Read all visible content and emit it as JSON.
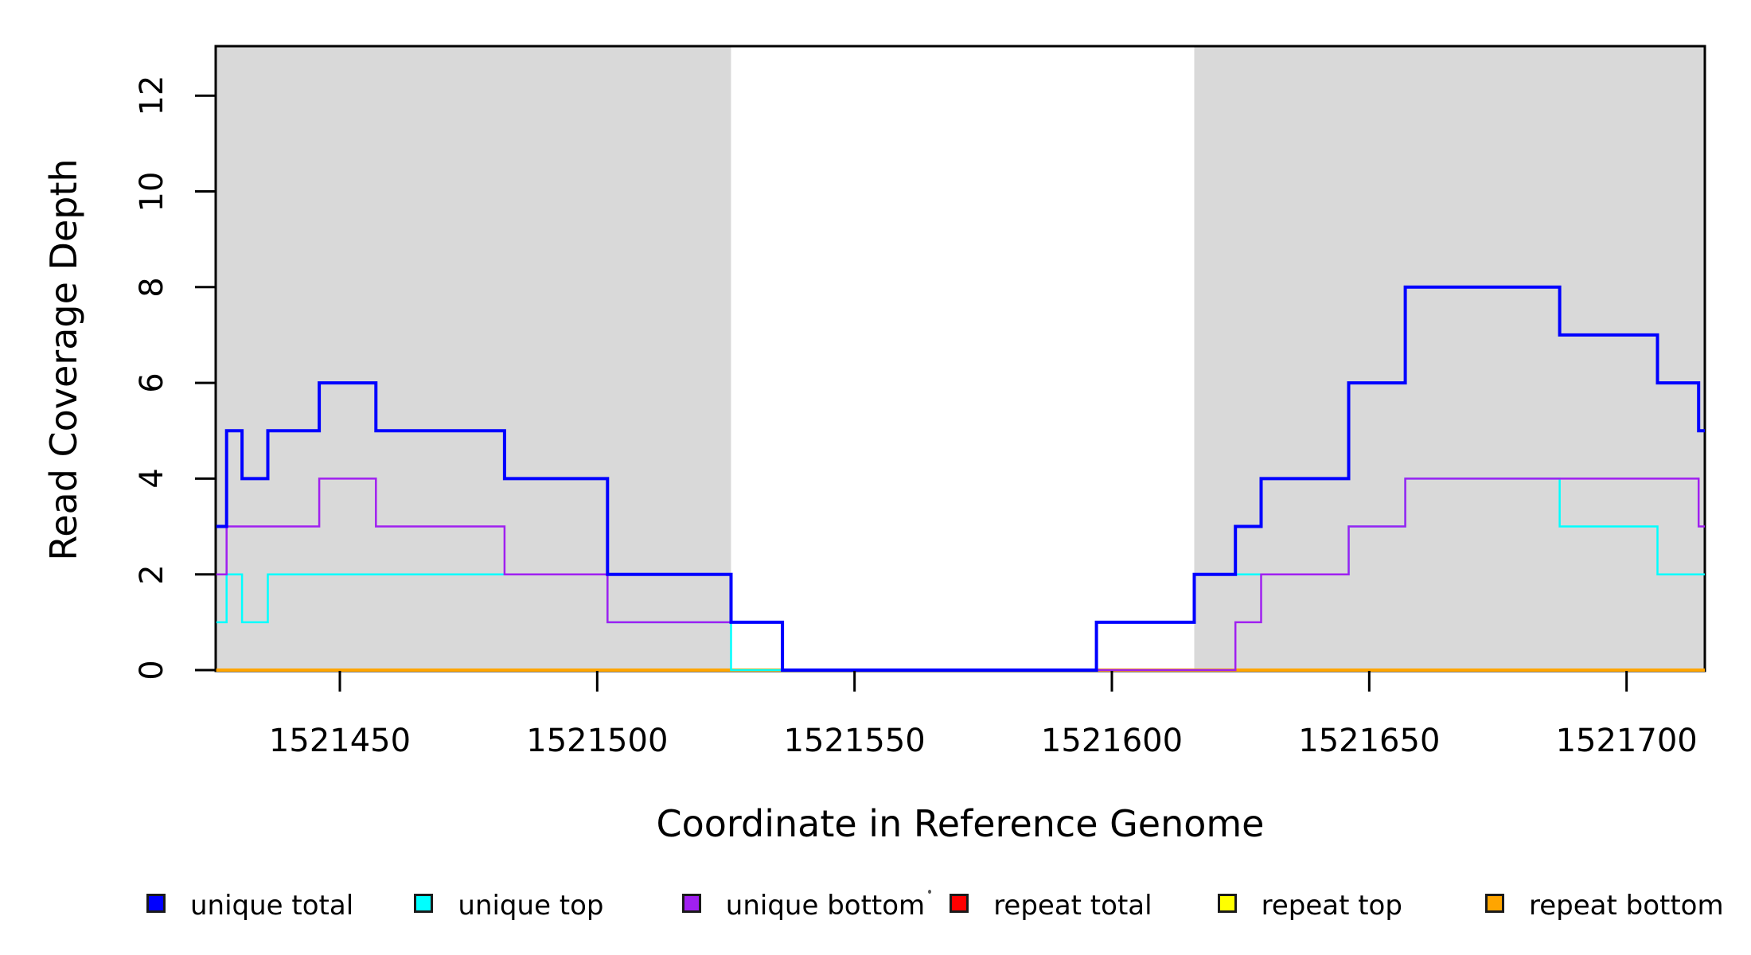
{
  "figure": {
    "background_color": "#ffffff",
    "shade_color": "#d9d9d9",
    "axis_color": "#000000"
  },
  "chart_data": {
    "type": "line",
    "subtype": "step-coverage",
    "title": "",
    "xlabel": "Coordinate in Reference Genome",
    "ylabel": "Read Coverage Depth",
    "xlim": [
      1521426,
      1521715
    ],
    "ylim": [
      0,
      13
    ],
    "grid": false,
    "x_ticks": [
      1521450,
      1521500,
      1521550,
      1521600,
      1521650,
      1521700
    ],
    "y_ticks": [
      0,
      2,
      4,
      6,
      8,
      10,
      12
    ],
    "shaded_regions": [
      {
        "x0": 1521426,
        "x1": 1521526
      },
      {
        "x0": 1521616,
        "x1": 1521715
      }
    ],
    "series": [
      {
        "name": "unique total",
        "color": "#0000ff",
        "width": 4,
        "zorder": 6,
        "steps": [
          [
            1521426,
            3
          ],
          [
            1521428,
            5
          ],
          [
            1521431,
            4
          ],
          [
            1521436,
            5
          ],
          [
            1521446,
            6
          ],
          [
            1521457,
            5
          ],
          [
            1521482,
            4
          ],
          [
            1521502,
            2
          ],
          [
            1521526,
            1
          ],
          [
            1521536,
            0
          ],
          [
            1521597,
            1
          ],
          [
            1521616,
            2
          ],
          [
            1521624,
            3
          ],
          [
            1521629,
            4
          ],
          [
            1521646,
            6
          ],
          [
            1521657,
            8
          ],
          [
            1521687,
            7
          ],
          [
            1521706,
            6
          ],
          [
            1521714,
            5
          ]
        ]
      },
      {
        "name": "unique top",
        "color": "#00ffff",
        "width": 2.5,
        "zorder": 4,
        "steps": [
          [
            1521426,
            1
          ],
          [
            1521428,
            2
          ],
          [
            1521431,
            1
          ],
          [
            1521436,
            2
          ],
          [
            1521502,
            1
          ],
          [
            1521526,
            0
          ],
          [
            1521597,
            1
          ],
          [
            1521616,
            2
          ],
          [
            1521646,
            3
          ],
          [
            1521657,
            4
          ],
          [
            1521687,
            3
          ],
          [
            1521706,
            2
          ]
        ]
      },
      {
        "name": "unique bottom",
        "color": "#a020f0",
        "width": 2.5,
        "zorder": 5,
        "steps": [
          [
            1521426,
            2
          ],
          [
            1521428,
            3
          ],
          [
            1521446,
            4
          ],
          [
            1521457,
            3
          ],
          [
            1521482,
            2
          ],
          [
            1521502,
            1
          ],
          [
            1521536,
            0
          ],
          [
            1521624,
            1
          ],
          [
            1521629,
            2
          ],
          [
            1521646,
            3
          ],
          [
            1521657,
            4
          ],
          [
            1521714,
            3
          ]
        ]
      },
      {
        "name": "repeat total",
        "color": "#ff0000",
        "width": 3,
        "zorder": 1,
        "steps": [
          [
            1521426,
            0
          ]
        ]
      },
      {
        "name": "repeat top",
        "color": "#ffff00",
        "width": 3,
        "zorder": 2,
        "steps": [
          [
            1521426,
            0
          ]
        ]
      },
      {
        "name": "repeat bottom",
        "color": "#ffa500",
        "width": 4,
        "zorder": 3,
        "steps": [
          [
            1521426,
            0
          ]
        ]
      }
    ],
    "legend": {
      "position": "bottom",
      "entries": [
        {
          "label": "unique total",
          "color": "#0000ff"
        },
        {
          "label": "unique top",
          "color": "#00ffff"
        },
        {
          "label": "unique bottom",
          "color": "#a020f0"
        },
        {
          "label": "repeat total",
          "color": "#ff0000"
        },
        {
          "label": "repeat top",
          "color": "#ffff00"
        },
        {
          "label": "repeat bottom",
          "color": "#ffa500"
        }
      ]
    }
  }
}
